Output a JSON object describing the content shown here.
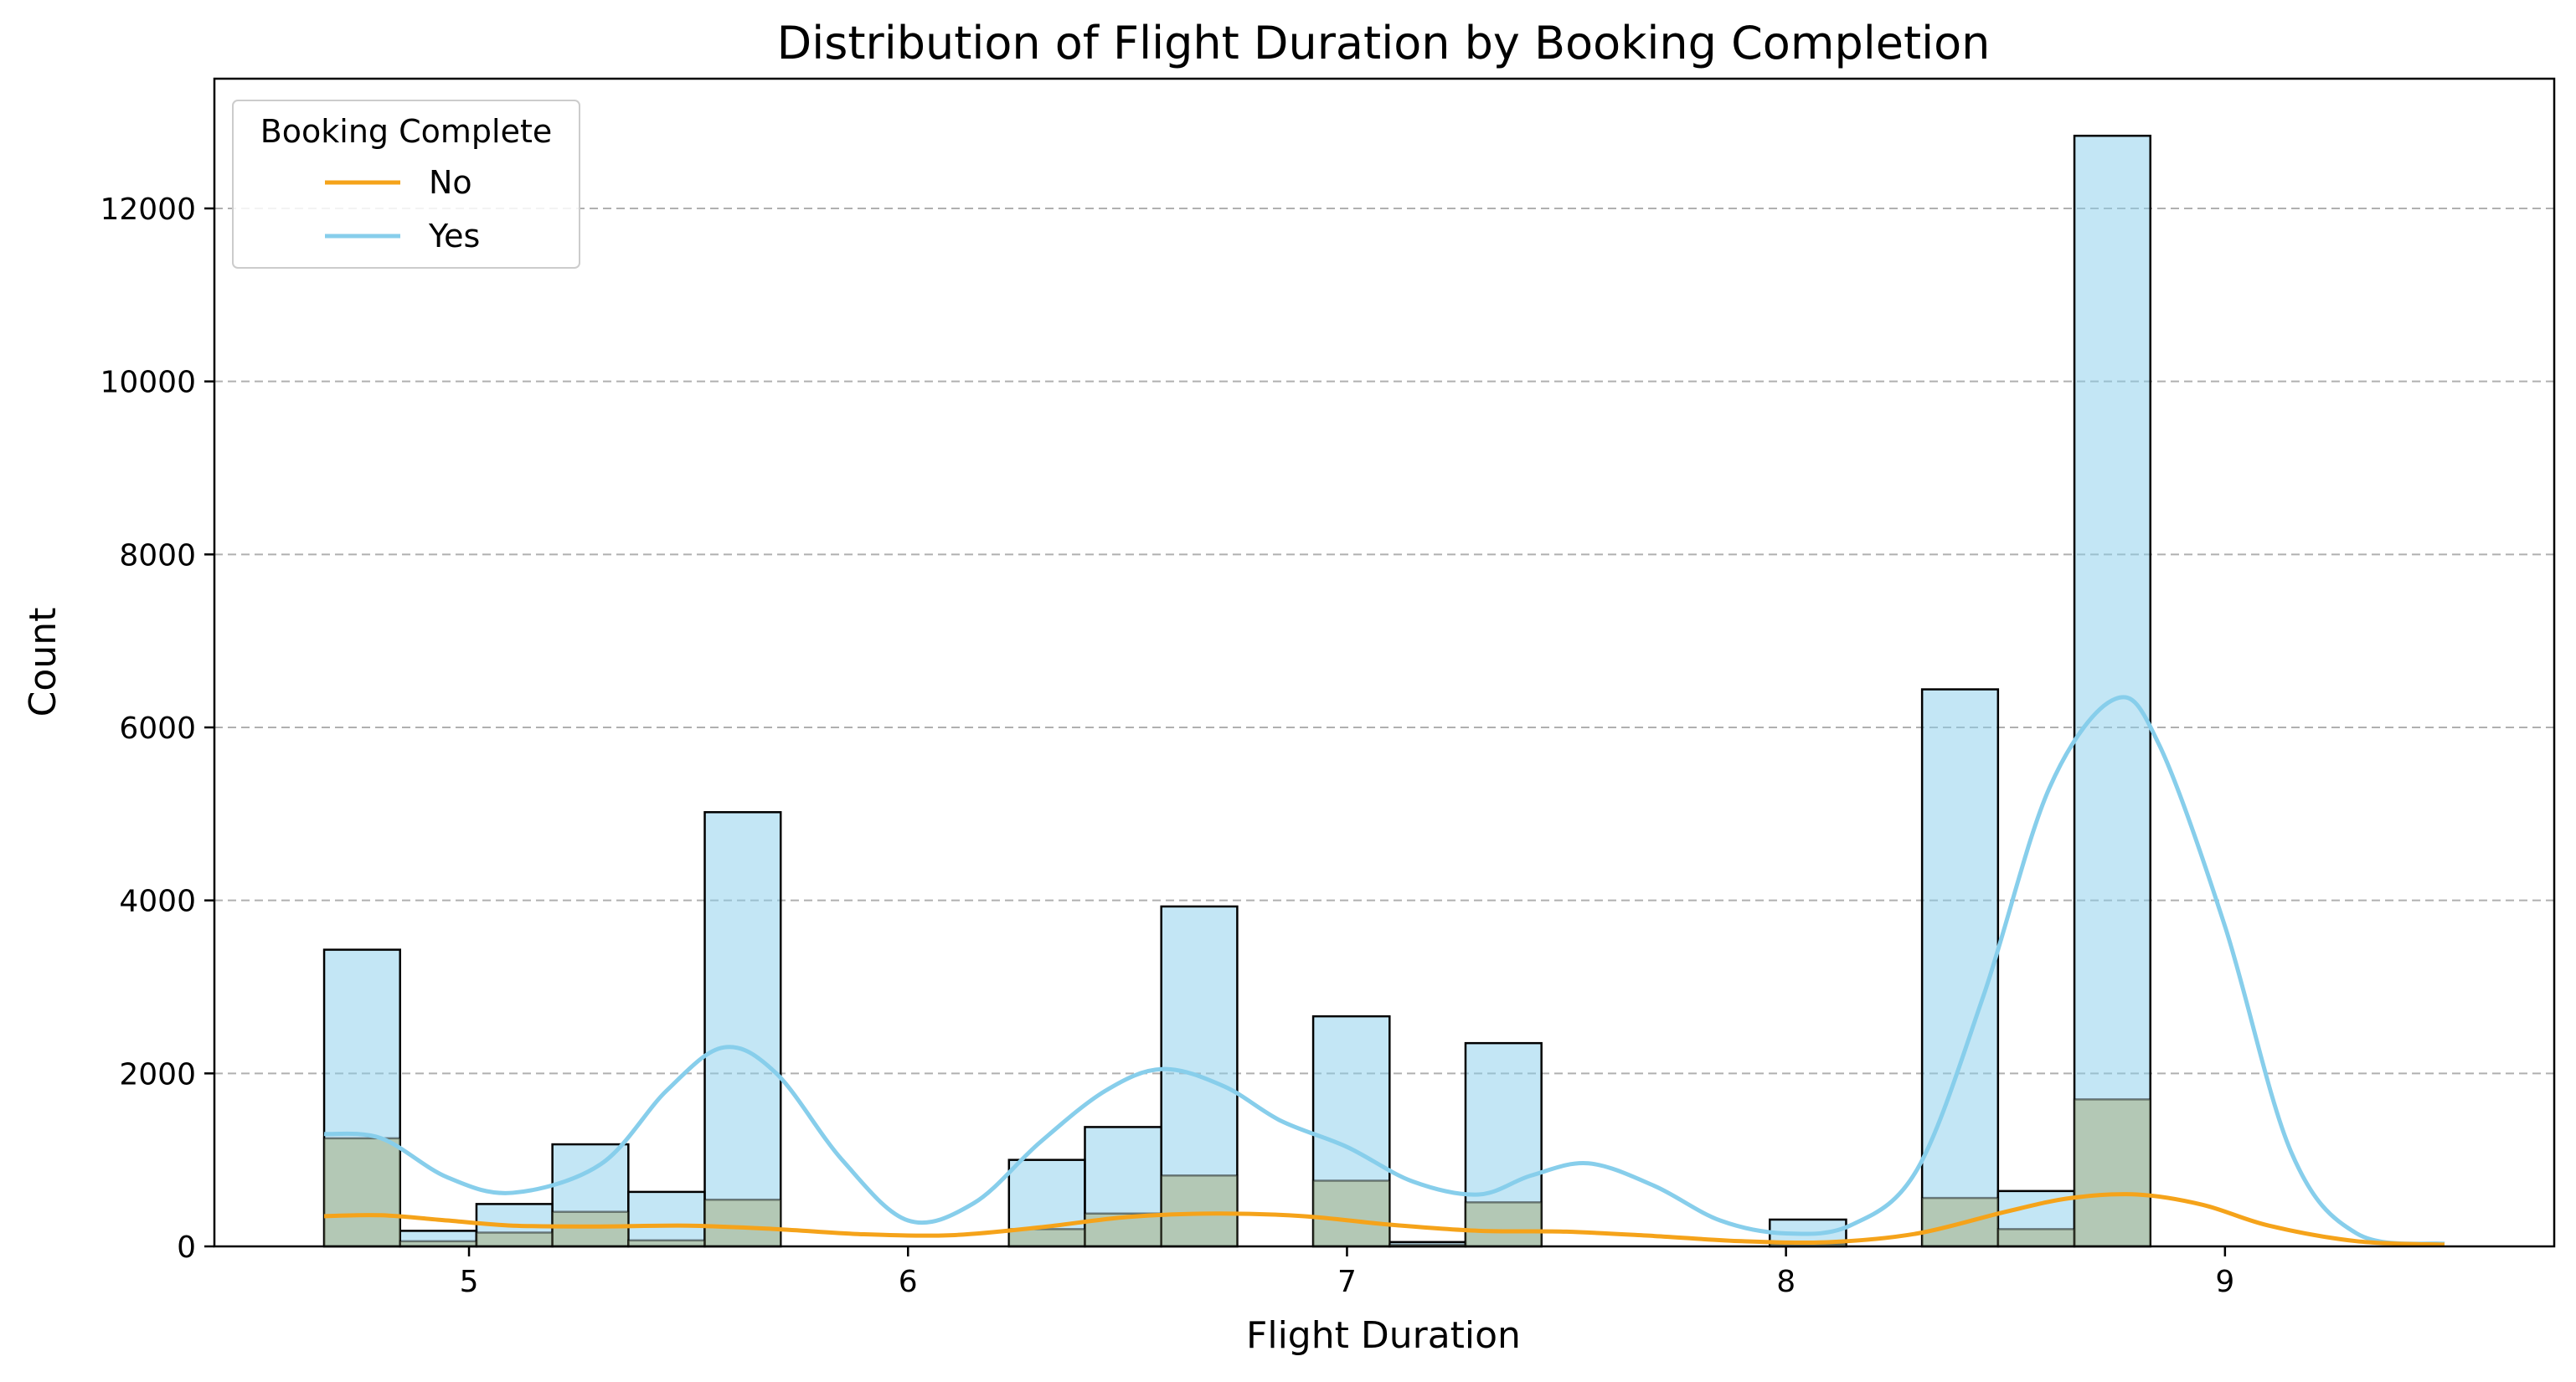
{
  "chart_data": {
    "type": "bar",
    "title": "Distribution of Flight Duration by Booking Completion",
    "xlabel": "Flight Duration",
    "ylabel": "Count",
    "xlim": [
      4.42,
      9.75
    ],
    "ylim": [
      0,
      13500
    ],
    "xticks": [
      5,
      6,
      7,
      8,
      9
    ],
    "xtick_labels": [
      "5",
      "6",
      "7",
      "8",
      "9"
    ],
    "yticks": [
      0,
      2000,
      4000,
      6000,
      8000,
      10000,
      12000
    ],
    "ytick_labels": [
      "0",
      "2000",
      "4000",
      "6000",
      "8000",
      "10000",
      "12000"
    ],
    "grid": "y dashed",
    "legend": {
      "title": "Booking Complete",
      "placement": "top-left",
      "entries": [
        "No",
        "Yes"
      ]
    },
    "bin_edges": [
      4.67,
      4.843,
      5.017,
      5.19,
      5.363,
      5.537,
      5.71,
      5.883,
      6.057,
      6.23,
      6.403,
      6.577,
      6.75,
      6.923,
      7.097,
      7.27,
      7.443,
      7.617,
      7.79,
      7.963,
      8.137,
      8.31,
      8.483,
      8.657,
      8.83,
      9.003
    ],
    "series": [
      {
        "name": "Yes",
        "color": "#87ceeb",
        "values": [
          2180,
          120,
          330,
          780,
          560,
          4480,
          0,
          0,
          0,
          800,
          1000,
          3110,
          0,
          1900,
          30,
          1840,
          0,
          0,
          0,
          280,
          0,
          5880,
          440,
          11140,
          0
        ]
      },
      {
        "name": "No",
        "color": "#f5a31a",
        "values": [
          1250,
          60,
          160,
          400,
          70,
          540,
          0,
          0,
          0,
          200,
          380,
          820,
          0,
          760,
          20,
          510,
          0,
          0,
          0,
          30,
          0,
          560,
          200,
          1700,
          0
        ]
      }
    ],
    "kde": [
      {
        "name": "Yes",
        "color": "#87ceeb",
        "x": [
          4.67,
          4.8,
          4.95,
          5.1,
          5.3,
          5.45,
          5.58,
          5.7,
          5.85,
          6.0,
          6.15,
          6.3,
          6.45,
          6.58,
          6.72,
          6.85,
          7.0,
          7.15,
          7.3,
          7.42,
          7.55,
          7.7,
          7.85,
          8.0,
          8.15,
          8.3,
          8.45,
          8.6,
          8.75,
          8.85,
          9.0,
          9.15,
          9.3,
          9.5
        ],
        "y": [
          1300,
          1250,
          800,
          620,
          950,
          1800,
          2300,
          2000,
          1000,
          300,
          500,
          1200,
          1800,
          2050,
          1850,
          1450,
          1150,
          750,
          600,
          820,
          960,
          700,
          300,
          150,
          250,
          900,
          2900,
          5300,
          6330,
          5800,
          3700,
          1100,
          150,
          30
        ]
      },
      {
        "name": "No",
        "color": "#f5a31a",
        "x": [
          4.67,
          4.8,
          4.95,
          5.1,
          5.3,
          5.5,
          5.7,
          5.9,
          6.1,
          6.3,
          6.5,
          6.7,
          6.9,
          7.1,
          7.3,
          7.5,
          7.7,
          7.9,
          8.1,
          8.3,
          8.5,
          8.65,
          8.8,
          8.95,
          9.1,
          9.3,
          9.5
        ],
        "y": [
          350,
          360,
          300,
          240,
          230,
          240,
          200,
          140,
          130,
          220,
          340,
          380,
          350,
          250,
          180,
          170,
          120,
          60,
          50,
          150,
          400,
          560,
          600,
          480,
          240,
          60,
          20
        ]
      }
    ]
  }
}
